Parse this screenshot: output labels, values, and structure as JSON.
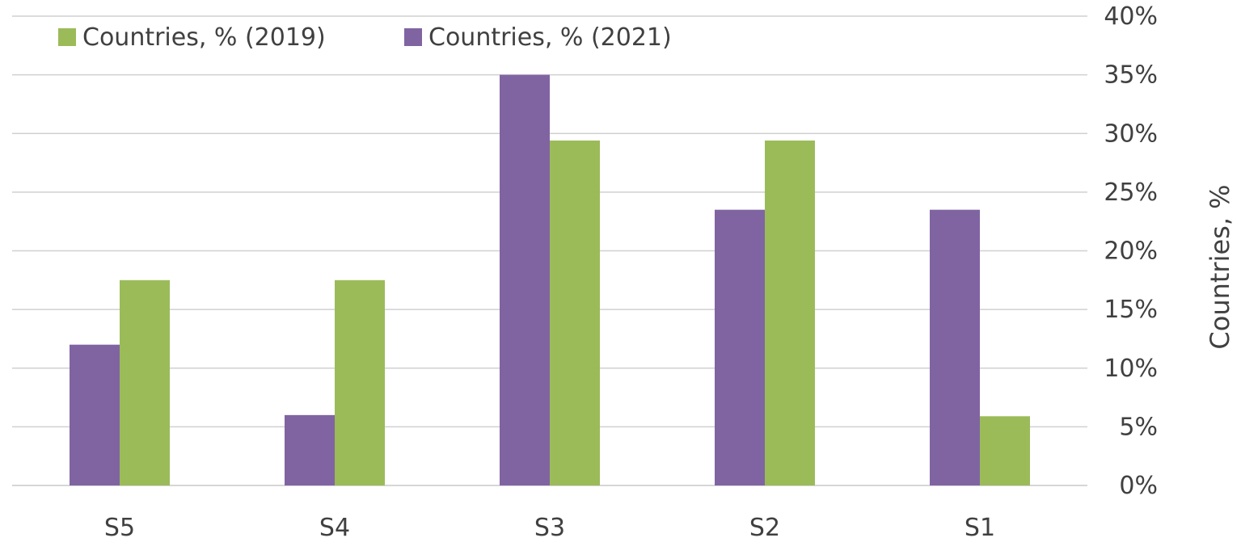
{
  "chart_data": {
    "type": "bar",
    "categories": [
      "S5",
      "S4",
      "S3",
      "S2",
      "S1"
    ],
    "series": [
      {
        "name": "Countries, %  (2021)",
        "values": [
          12,
          6,
          35,
          23.5,
          23.5
        ],
        "color": "#8064a2"
      },
      {
        "name": "Countries, %  (2019)",
        "values": [
          17.5,
          17.5,
          29.4,
          29.4,
          5.9
        ],
        "color": "#9bbb59"
      }
    ],
    "title": "",
    "xlabel": "",
    "ylabel": "Countries, %",
    "ylim": [
      0,
      40
    ],
    "yticks": [
      {
        "value": 0,
        "label": "0%"
      },
      {
        "value": 5,
        "label": "5%"
      },
      {
        "value": 10,
        "label": "10%"
      },
      {
        "value": 15,
        "label": "15%"
      },
      {
        "value": 20,
        "label": "20%"
      },
      {
        "value": 25,
        "label": "25%"
      },
      {
        "value": 30,
        "label": "30%"
      },
      {
        "value": 35,
        "label": "35%"
      },
      {
        "value": 40,
        "label": "40%"
      }
    ],
    "y_axis_side": "right",
    "grid": true,
    "legend": {
      "placement": "top-left",
      "order": [
        "Countries, %  (2019)",
        "Countries, %  (2021)"
      ]
    }
  }
}
